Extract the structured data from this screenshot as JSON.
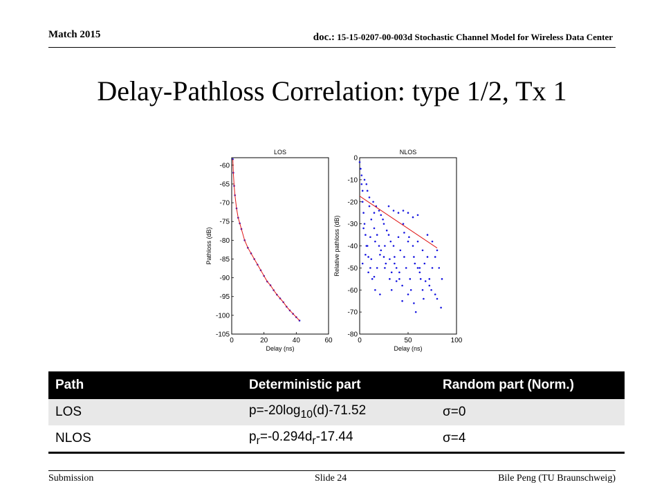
{
  "header": {
    "date": "Match 2015",
    "doc_label": "doc.:",
    "doc_text": "15-15-0207-00-003d Stochastic Channel Model for Wireless Data Center"
  },
  "title": "Delay-Pathloss Correlation: type 1/2, Tx 1",
  "chart_data": [
    {
      "type": "scatter",
      "title": "LOS",
      "xlabel": "Delay (ns)",
      "ylabel": "Pathloss (dB)",
      "xlim": [
        0,
        60
      ],
      "ylim": [
        -105,
        -58
      ],
      "xticks": [
        "0",
        "20",
        "40",
        "60"
      ],
      "yticks": [
        "-60",
        "-65",
        "-70",
        "-75",
        "-80",
        "-85",
        "-90",
        "-95",
        "-100",
        "-105"
      ],
      "series": [
        {
          "color": "#1515e0",
          "x": [
            0.7,
            1,
            1.5,
            2,
            3,
            4,
            5,
            6,
            8,
            10,
            12,
            14,
            16,
            18,
            20,
            22,
            24,
            26,
            28,
            30,
            32,
            34,
            36,
            38,
            40,
            42
          ],
          "y": [
            -58.4,
            -62.0,
            -65.5,
            -68.0,
            -71.5,
            -74.0,
            -75.5,
            -77.0,
            -80.0,
            -82.0,
            -83.5,
            -85.0,
            -86.5,
            -88.0,
            -89.5,
            -91.0,
            -92.0,
            -93.3,
            -94.5,
            -95.5,
            -96.5,
            -97.7,
            -98.7,
            -99.6,
            -100.5,
            -101.4
          ]
        },
        {
          "color": "#e01515",
          "x": [
            0.7,
            1,
            1.5,
            2,
            3,
            4,
            5,
            6,
            8,
            10,
            12,
            14,
            16,
            18,
            20,
            22,
            24,
            26,
            28,
            30,
            32,
            34,
            36,
            38,
            40,
            42
          ],
          "y": [
            -58.4,
            -62.0,
            -65.5,
            -68.0,
            -71.5,
            -74.0,
            -75.5,
            -77.0,
            -80.0,
            -82.0,
            -83.5,
            -85.0,
            -86.5,
            -88.0,
            -89.5,
            -91.0,
            -92.0,
            -93.3,
            -94.5,
            -95.5,
            -96.5,
            -97.7,
            -98.7,
            -99.6,
            -100.5,
            -101.4
          ]
        }
      ]
    },
    {
      "type": "scatter",
      "title": "NLOS",
      "xlabel": "Delay (ns)",
      "ylabel": "Relative pathloss (dB)",
      "xlim": [
        0,
        100
      ],
      "ylim": [
        -80,
        0
      ],
      "xticks": [
        "0",
        "50",
        "100"
      ],
      "yticks": [
        "0",
        "-10",
        "-20",
        "-30",
        "-40",
        "-50",
        "-60",
        "-70",
        "-80"
      ],
      "series": [
        {
          "color": "#1515e0",
          "x": [
            0,
            1,
            2,
            2,
            3,
            3,
            4,
            5,
            5,
            6,
            7,
            8,
            8,
            9,
            10,
            10,
            11,
            12,
            13,
            14,
            15,
            15,
            16,
            17,
            18,
            20,
            20,
            21,
            22,
            24,
            25,
            25,
            26,
            28,
            30,
            30,
            31,
            32,
            33,
            35,
            35,
            36,
            38,
            40,
            40,
            41,
            42,
            44,
            45,
            45,
            46,
            48,
            50,
            50,
            52,
            53,
            55,
            55,
            56,
            58,
            60,
            60,
            62,
            63,
            65,
            65,
            67,
            70,
            70,
            72,
            75,
            75,
            78,
            80,
            82,
            85,
            3,
            6,
            9,
            12,
            15,
            18,
            22,
            27,
            33,
            38,
            44,
            50,
            56,
            60,
            66,
            72,
            78,
            84,
            4,
            7,
            11,
            16,
            21,
            26,
            31,
            36,
            41,
            46,
            51,
            57,
            62,
            68,
            74,
            80
          ],
          "y": [
            -2,
            -5,
            -8,
            -12,
            -15,
            -20,
            -25,
            -10,
            -30,
            -35,
            -12,
            -15,
            -40,
            -45,
            -18,
            -22,
            -50,
            -28,
            -55,
            -20,
            -25,
            -32,
            -60,
            -22,
            -35,
            -24,
            -40,
            -62,
            -26,
            -28,
            -30,
            -45,
            -50,
            -33,
            -22,
            -35,
            -55,
            -38,
            -60,
            -24,
            -40,
            -45,
            -50,
            -25,
            -36,
            -55,
            -42,
            -65,
            -24,
            -30,
            -45,
            -50,
            -25,
            -38,
            -55,
            -60,
            -27,
            -40,
            -45,
            -70,
            -26,
            -38,
            -50,
            -55,
            -42,
            -60,
            -48,
            -35,
            -45,
            -55,
            -38,
            -50,
            -45,
            -42,
            -50,
            -55,
            -48,
            -44,
            -52,
            -46,
            -54,
            -50,
            -42,
            -48,
            -52,
            -56,
            -58,
            -62,
            -66,
            -50,
            -64,
            -58,
            -62,
            -68,
            -32,
            -40,
            -36,
            -38,
            -44,
            -40,
            -46,
            -48,
            -52,
            -34,
            -36,
            -48,
            -52,
            -56,
            -60,
            -64
          ]
        },
        {
          "color": "#e01515",
          "x": [
            0,
            80
          ],
          "y": [
            -17.44,
            -40.96
          ]
        }
      ]
    }
  ],
  "table": {
    "headers": [
      "Path",
      "Deterministic part",
      "Random part (Norm.)"
    ],
    "rows": [
      {
        "path": "LOS",
        "det_main": "p=-20log",
        "det_sub": "10",
        "det_rest": "(d)-71.52",
        "random": "σ=0"
      },
      {
        "path": "NLOS",
        "det_p": "p",
        "det_sub1": "r",
        "det_mid": "=-0.294d",
        "det_sub2": "r",
        "det_rest": "-17.44",
        "random": "σ=4"
      }
    ]
  },
  "footer": {
    "left": "Submission",
    "center": "Slide 24",
    "right": "Bile Peng (TU Braunschweig)"
  }
}
